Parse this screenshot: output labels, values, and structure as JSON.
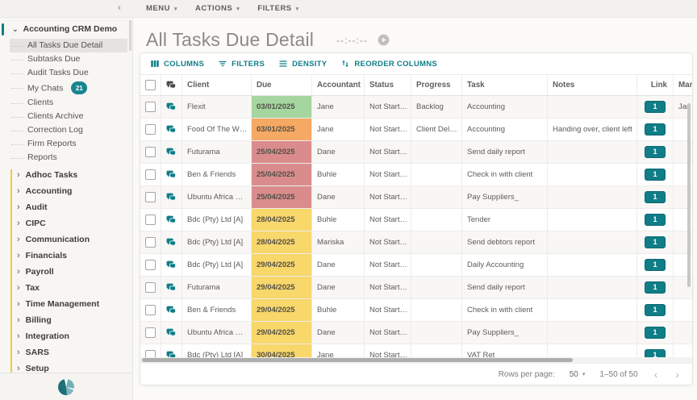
{
  "colors": {
    "accent": "#107d87",
    "badge": "#18858f",
    "due_green": "#a5d6a0",
    "due_orange": "#f6a963",
    "due_red": "#da8c8c",
    "due_yellow": "#f8d76b"
  },
  "icons": {
    "collapse": "chevron-left",
    "root_caret": "chevron-down",
    "section_caret": "chevron-right",
    "menu_caret": "caret-down",
    "chat": "chat-bubbles",
    "play": "play-circle",
    "columns": "column-bars",
    "filters": "filter-lines",
    "density": "density-lines",
    "reorder": "swap-vertical",
    "page_prev": "chevron-left",
    "page_next": "chevron-right"
  },
  "topbar": {
    "menus": [
      {
        "label": "MENU"
      },
      {
        "label": "ACTIONS"
      },
      {
        "label": "FILTERS"
      }
    ]
  },
  "sidebar": {
    "root_label": "Accounting CRM Demo",
    "items": [
      {
        "label": "All Tasks Due Detail",
        "selected": true
      },
      {
        "label": "Subtasks Due"
      },
      {
        "label": "Audit Tasks Due"
      },
      {
        "label": "My Chats",
        "badge": "21"
      },
      {
        "label": "Clients"
      },
      {
        "label": "Clients Archive"
      },
      {
        "label": "Correction Log"
      },
      {
        "label": "Firm Reports"
      },
      {
        "label": "Reports"
      }
    ],
    "sections": [
      {
        "label": "Adhoc Tasks"
      },
      {
        "label": "Accounting"
      },
      {
        "label": "Audit"
      },
      {
        "label": "CIPC"
      },
      {
        "label": "Communication"
      },
      {
        "label": "Financials"
      },
      {
        "label": "Payroll"
      },
      {
        "label": "Tax"
      },
      {
        "label": "Time Management"
      },
      {
        "label": "Billing"
      },
      {
        "label": "Integration"
      },
      {
        "label": "SARS"
      },
      {
        "label": "Setup"
      }
    ]
  },
  "page": {
    "title": "All Tasks Due Detail",
    "timer": "--:--:--"
  },
  "grid_toolbar": {
    "buttons": [
      {
        "label": "COLUMNS",
        "icon": "columns-icon"
      },
      {
        "label": "FILTERS",
        "icon": "filter-icon"
      },
      {
        "label": "DENSITY",
        "icon": "density-icon"
      },
      {
        "label": "REORDER COLUMNS",
        "icon": "swap-vertical-icon"
      }
    ]
  },
  "table": {
    "columns": [
      {
        "label": "Client"
      },
      {
        "label": "Due"
      },
      {
        "label": "Accountant"
      },
      {
        "label": "Status"
      },
      {
        "label": "Progress"
      },
      {
        "label": "Task"
      },
      {
        "label": "Notes"
      },
      {
        "label": "Link"
      },
      {
        "label": "Man"
      }
    ],
    "rows": [
      {
        "client": "Flexit",
        "due": "03/01/2025",
        "due_color": "green",
        "accountant": "Jane",
        "status": "Not Started",
        "progress": "Backlog",
        "task": "Accounting",
        "notes": "",
        "link": "1",
        "man": "Jan"
      },
      {
        "client": "Food Of The World",
        "due": "03/01/2025",
        "due_color": "orange",
        "accountant": "Jane",
        "status": "Not Started",
        "progress": "Client Delayed",
        "task": "Accounting",
        "notes": "Handing over, client left",
        "link": "1",
        "man": ""
      },
      {
        "client": "Futurama",
        "due": "25/04/2025",
        "due_color": "red",
        "accountant": "Dane",
        "status": "Not Started",
        "progress": "",
        "task": "Send daily report",
        "notes": "",
        "link": "1",
        "man": ""
      },
      {
        "client": "Ben & Friends",
        "due": "25/04/2025",
        "due_color": "red",
        "accountant": "Buhle",
        "status": "Not Started",
        "progress": "",
        "task": "Check in with client",
        "notes": "",
        "link": "1",
        "man": ""
      },
      {
        "client": "Ubuntu Africa Hol...",
        "due": "25/04/2025",
        "due_color": "red",
        "accountant": "Dane",
        "status": "Not Started",
        "progress": "",
        "task": "Pay Suppliers_",
        "notes": "",
        "link": "1",
        "man": ""
      },
      {
        "client": "Bdc (Pty) Ltd [A]",
        "due": "28/04/2025",
        "due_color": "yellow",
        "accountant": "Buhle",
        "status": "Not Started",
        "progress": "",
        "task": "Tender",
        "notes": "",
        "link": "1",
        "man": ""
      },
      {
        "client": "Bdc (Pty) Ltd [A]",
        "due": "28/04/2025",
        "due_color": "yellow",
        "accountant": "Mariska",
        "status": "Not Started",
        "progress": "",
        "task": "Send debtors report",
        "notes": "",
        "link": "1",
        "man": ""
      },
      {
        "client": "Bdc (Pty) Ltd [A]",
        "due": "29/04/2025",
        "due_color": "yellow",
        "accountant": "Dane",
        "status": "Not Started",
        "progress": "",
        "task": "Daily Accounting",
        "notes": "",
        "link": "1",
        "man": ""
      },
      {
        "client": "Futurama",
        "due": "29/04/2025",
        "due_color": "yellow",
        "accountant": "Dane",
        "status": "Not Started",
        "progress": "",
        "task": "Send daily report",
        "notes": "",
        "link": "1",
        "man": ""
      },
      {
        "client": "Ben & Friends",
        "due": "29/04/2025",
        "due_color": "yellow",
        "accountant": "Buhle",
        "status": "Not Started",
        "progress": "",
        "task": "Check in with client",
        "notes": "",
        "link": "1",
        "man": ""
      },
      {
        "client": "Ubuntu Africa Hol...",
        "due": "29/04/2025",
        "due_color": "yellow",
        "accountant": "Dane",
        "status": "Not Started",
        "progress": "",
        "task": "Pay Suppliers_",
        "notes": "",
        "link": "1",
        "man": ""
      },
      {
        "client": "Bdc (Pty) Ltd [A]",
        "due": "30/04/2025",
        "due_color": "yellow",
        "accountant": "Jane",
        "status": "Not Started",
        "progress": "",
        "task": "VAT Ret",
        "notes": "",
        "link": "1",
        "man": ""
      }
    ]
  },
  "pagination": {
    "rows_per_page_label": "Rows per page:",
    "rows_per_page": "50",
    "range": "1–50 of 50"
  }
}
